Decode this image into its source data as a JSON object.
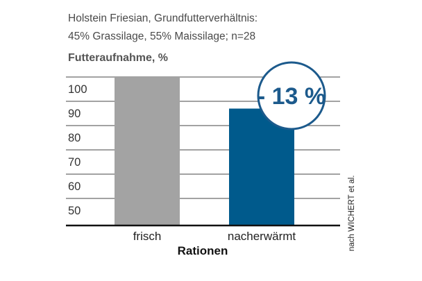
{
  "chart_data": {
    "type": "bar",
    "subtitle_lines": [
      "Holstein Friesian, Grundfutterverhältnis:",
      "45% Grassilage, 55% Maissilage; n=28"
    ],
    "ylabel": "Futteraufnahme, %",
    "xlabel": "Rationen",
    "categories": [
      "frisch",
      "nacherwärmt"
    ],
    "values": [
      100,
      87
    ],
    "yticks": [
      50,
      60,
      70,
      80,
      90,
      100
    ],
    "ylim": [
      40,
      100
    ],
    "grid": true,
    "colors": {
      "frisch": "#a3a3a3",
      "nacherwärmt": "#005a8c"
    },
    "annotation": "- 13 %",
    "source": "nach WICHERT et al."
  }
}
